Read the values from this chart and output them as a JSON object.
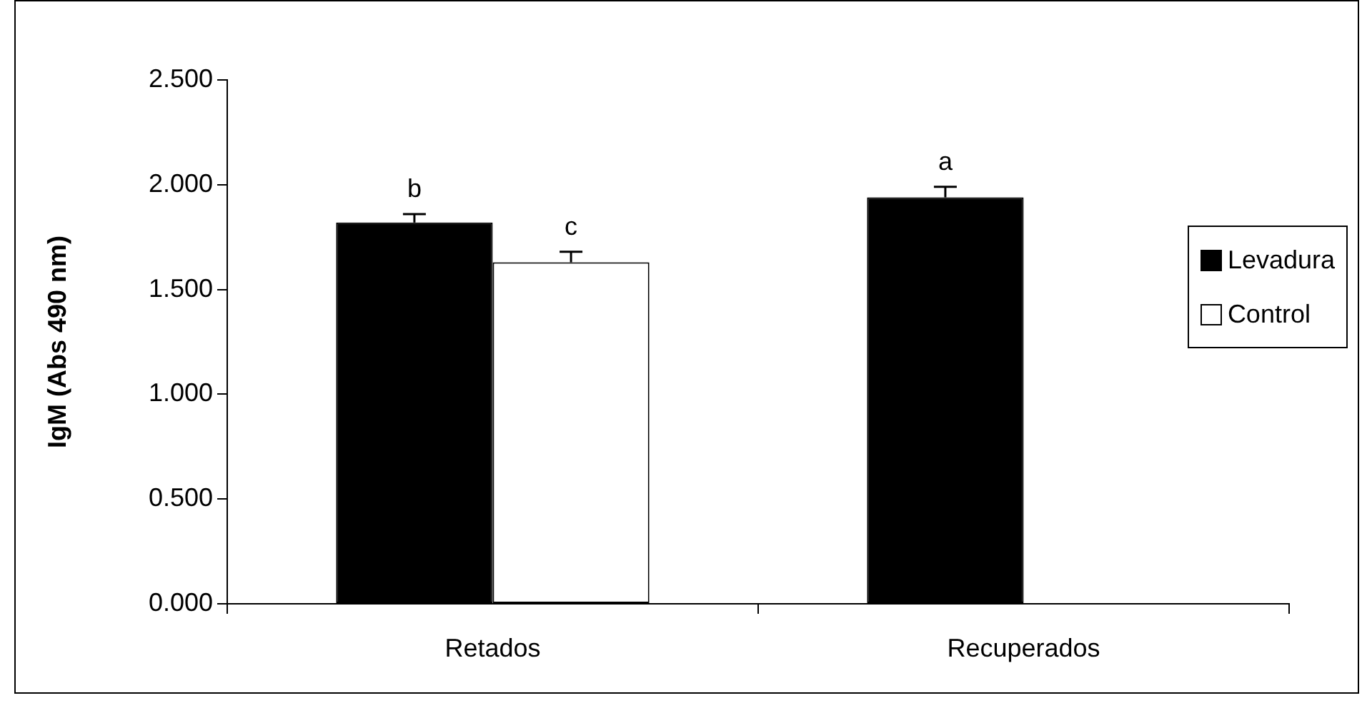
{
  "chart_data": {
    "type": "bar",
    "ylabel": "IgM (Abs 490 nm)",
    "categories": [
      "Retados",
      "Recuperados"
    ],
    "series": [
      {
        "name": "Levadura",
        "color": "#000000",
        "values": [
          1.82,
          1.94
        ],
        "errors": [
          0.04,
          0.05
        ],
        "value_labels": [
          "b",
          "a"
        ]
      },
      {
        "name": "Control",
        "color": "#ffffff",
        "values": [
          1.63,
          null
        ],
        "errors": [
          0.05,
          null
        ],
        "value_labels": [
          "c",
          null
        ]
      }
    ],
    "ylim": [
      0,
      2.5
    ],
    "yticks": [
      {
        "value": 0,
        "label": "0.000"
      },
      {
        "value": 0.5,
        "label": "0.500"
      },
      {
        "value": 1,
        "label": "1.000"
      },
      {
        "value": 1.5,
        "label": "1.500"
      },
      {
        "value": 2,
        "label": "2.000"
      },
      {
        "value": 2.5,
        "label": "2.500"
      }
    ],
    "grid": false,
    "legend": "right"
  }
}
